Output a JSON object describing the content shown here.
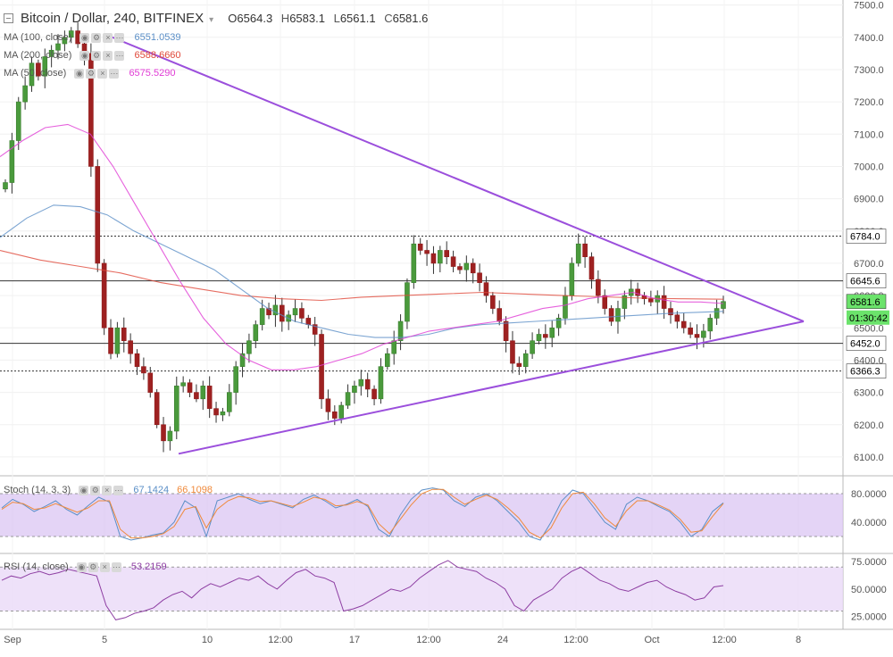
{
  "header": {
    "symbol": "Bitcoin / Dollar, 240, BITFINEX",
    "open_label": "O",
    "open": "6564.3",
    "high_label": "H",
    "high": "6583.1",
    "low_label": "L",
    "low": "6561.1",
    "close_label": "C",
    "close": "6581.6"
  },
  "legends": {
    "ma100": {
      "label": "MA (100, close)",
      "value": "6551.0539",
      "color": "#5b8fc7"
    },
    "ma200": {
      "label": "MA (200, close)",
      "value": "6588.6660",
      "color": "#e0493a"
    },
    "ma50": {
      "label": "MA (50, close)",
      "value": "6575.5290",
      "color": "#e03bd5"
    },
    "stoch": {
      "label": "Stoch (14, 3, 3)",
      "k": "67.1424",
      "d": "66.1098",
      "k_color": "#5b8fc7",
      "d_color": "#f08a3c"
    },
    "rsi": {
      "label": "RSI (14, close)",
      "value": "53.2159",
      "color": "#8e3fa3"
    }
  },
  "price_tags": {
    "last": "6581.6",
    "countdown": "01:30:42",
    "r1": "6784.0",
    "r2": "6645.6",
    "s1": "6452.0",
    "s2": "6366.3"
  },
  "chart_data": [
    {
      "type": "candlestick",
      "pane": "price",
      "ylim": [
        6050,
        7510
      ],
      "y_ticks": [
        "7500.0",
        "7400.0",
        "7300.0",
        "7200.0",
        "7100.0",
        "7000.0",
        "6900.0",
        "6800.0",
        "6700.0",
        "6600.0",
        "6500.0",
        "6400.0",
        "6300.0",
        "6200.0",
        "6100.0"
      ],
      "x_ticks": [
        "Sep",
        "5",
        "10",
        "12:00",
        "17",
        "12:00",
        "24",
        "12:00",
        "Oct",
        "12:00",
        "8"
      ],
      "ohlc_anchor_closes": [
        6950,
        7080,
        7200,
        7250,
        7320,
        7280,
        7340,
        7360,
        7380,
        7400,
        7420,
        7380,
        7350,
        7000,
        6700,
        6500,
        6420,
        6500,
        6460,
        6420,
        6380,
        6360,
        6300,
        6200,
        6150,
        6180,
        6320,
        6330,
        6300,
        6280,
        6320,
        6250,
        6230,
        6240,
        6300,
        6380,
        6420,
        6460,
        6510,
        6560,
        6540,
        6570,
        6520,
        6540,
        6560,
        6530,
        6510,
        6480,
        6280,
        6240,
        6220,
        6260,
        6300,
        6320,
        6340,
        6310,
        6280,
        6380,
        6420,
        6460,
        6520,
        6640,
        6760,
        6740,
        6730,
        6700,
        6740,
        6720,
        6690,
        6680,
        6700,
        6670,
        6640,
        6600,
        6560,
        6520,
        6460,
        6390,
        6380,
        6420,
        6460,
        6480,
        6470,
        6500,
        6530,
        6600,
        6700,
        6760,
        6720,
        6650,
        6600,
        6560,
        6520,
        6560,
        6600,
        6620,
        6600,
        6590,
        6580,
        6600,
        6560,
        6540,
        6520,
        6500,
        6480,
        6470,
        6490,
        6530,
        6560,
        6581.6
      ],
      "ma50": [
        7030,
        7080,
        7120,
        7130,
        7100,
        7000,
        6880,
        6760,
        6640,
        6530,
        6450,
        6400,
        6370,
        6370,
        6380,
        6400,
        6420,
        6450,
        6470,
        6490,
        6500,
        6510,
        6520,
        6540,
        6560,
        6570,
        6590,
        6600,
        6610,
        6590,
        6580,
        6580,
        6575.5
      ],
      "ma100": [
        6780,
        6840,
        6880,
        6875,
        6850,
        6800,
        6760,
        6720,
        6680,
        6620,
        6560,
        6520,
        6500,
        6480,
        6470,
        6470,
        6480,
        6500,
        6510,
        6515,
        6520,
        6525,
        6530,
        6535,
        6540,
        6545,
        6548,
        6551
      ],
      "ma200": [
        6740,
        6710,
        6690,
        6670,
        6640,
        6620,
        6600,
        6590,
        6585,
        6595,
        6600,
        6605,
        6610,
        6605,
        6600,
        6596,
        6592,
        6590,
        6588.7
      ],
      "triangle": {
        "upper": [
          [
            0,
            7410
          ],
          [
            1,
            6645
          ]
        ],
        "lower": [
          [
            0,
            6110
          ],
          [
            1,
            6460
          ]
        ],
        "apex_price": 6520
      },
      "horizontal_levels": [
        6784.0,
        6645.6,
        6452.0,
        6366.3
      ]
    },
    {
      "type": "line",
      "pane": "stochastic",
      "ylim": [
        0,
        100
      ],
      "y_ticks": [
        "80.0000",
        "40.0000"
      ],
      "band": [
        20,
        80
      ],
      "series": [
        {
          "name": "%K",
          "values": [
            60,
            72,
            65,
            55,
            62,
            70,
            58,
            50,
            63,
            75,
            68,
            20,
            15,
            18,
            22,
            25,
            40,
            70,
            60,
            20,
            70,
            75,
            80,
            72,
            66,
            70,
            65,
            60,
            72,
            78,
            70,
            60,
            65,
            72,
            62,
            30,
            20,
            50,
            72,
            85,
            88,
            85,
            70,
            62,
            75,
            80,
            70,
            55,
            40,
            20,
            15,
            40,
            70,
            85,
            80,
            60,
            40,
            30,
            65,
            75,
            70,
            62,
            55,
            40,
            20,
            30,
            55,
            67.1
          ]
        },
        {
          "name": "%D",
          "values": [
            58,
            68,
            66,
            58,
            60,
            66,
            60,
            54,
            60,
            70,
            70,
            30,
            18,
            18,
            20,
            24,
            34,
            58,
            62,
            32,
            58,
            70,
            76,
            74,
            69,
            70,
            66,
            62,
            68,
            75,
            72,
            63,
            64,
            69,
            64,
            38,
            24,
            44,
            64,
            80,
            86,
            86,
            75,
            65,
            72,
            78,
            72,
            60,
            46,
            26,
            18,
            32,
            60,
            80,
            82,
            66,
            46,
            34,
            56,
            70,
            70,
            64,
            57,
            44,
            26,
            28,
            48,
            66.1
          ]
        }
      ]
    },
    {
      "type": "line",
      "pane": "rsi",
      "ylim": [
        15,
        80
      ],
      "y_ticks": [
        "75.0000",
        "50.0000",
        "25.0000"
      ],
      "band": [
        30,
        70
      ],
      "series": [
        {
          "name": "RSI",
          "values": [
            58,
            62,
            60,
            64,
            66,
            63,
            65,
            68,
            66,
            64,
            62,
            35,
            22,
            24,
            28,
            30,
            33,
            40,
            45,
            48,
            42,
            50,
            55,
            52,
            56,
            60,
            58,
            62,
            55,
            50,
            58,
            65,
            68,
            62,
            60,
            56,
            30,
            32,
            35,
            40,
            45,
            50,
            48,
            52,
            60,
            66,
            72,
            76,
            70,
            68,
            66,
            60,
            56,
            50,
            35,
            30,
            40,
            45,
            50,
            60,
            66,
            70,
            64,
            58,
            55,
            50,
            48,
            52,
            56,
            58,
            52,
            48,
            45,
            40,
            42,
            52,
            53.2
          ]
        }
      ]
    }
  ]
}
